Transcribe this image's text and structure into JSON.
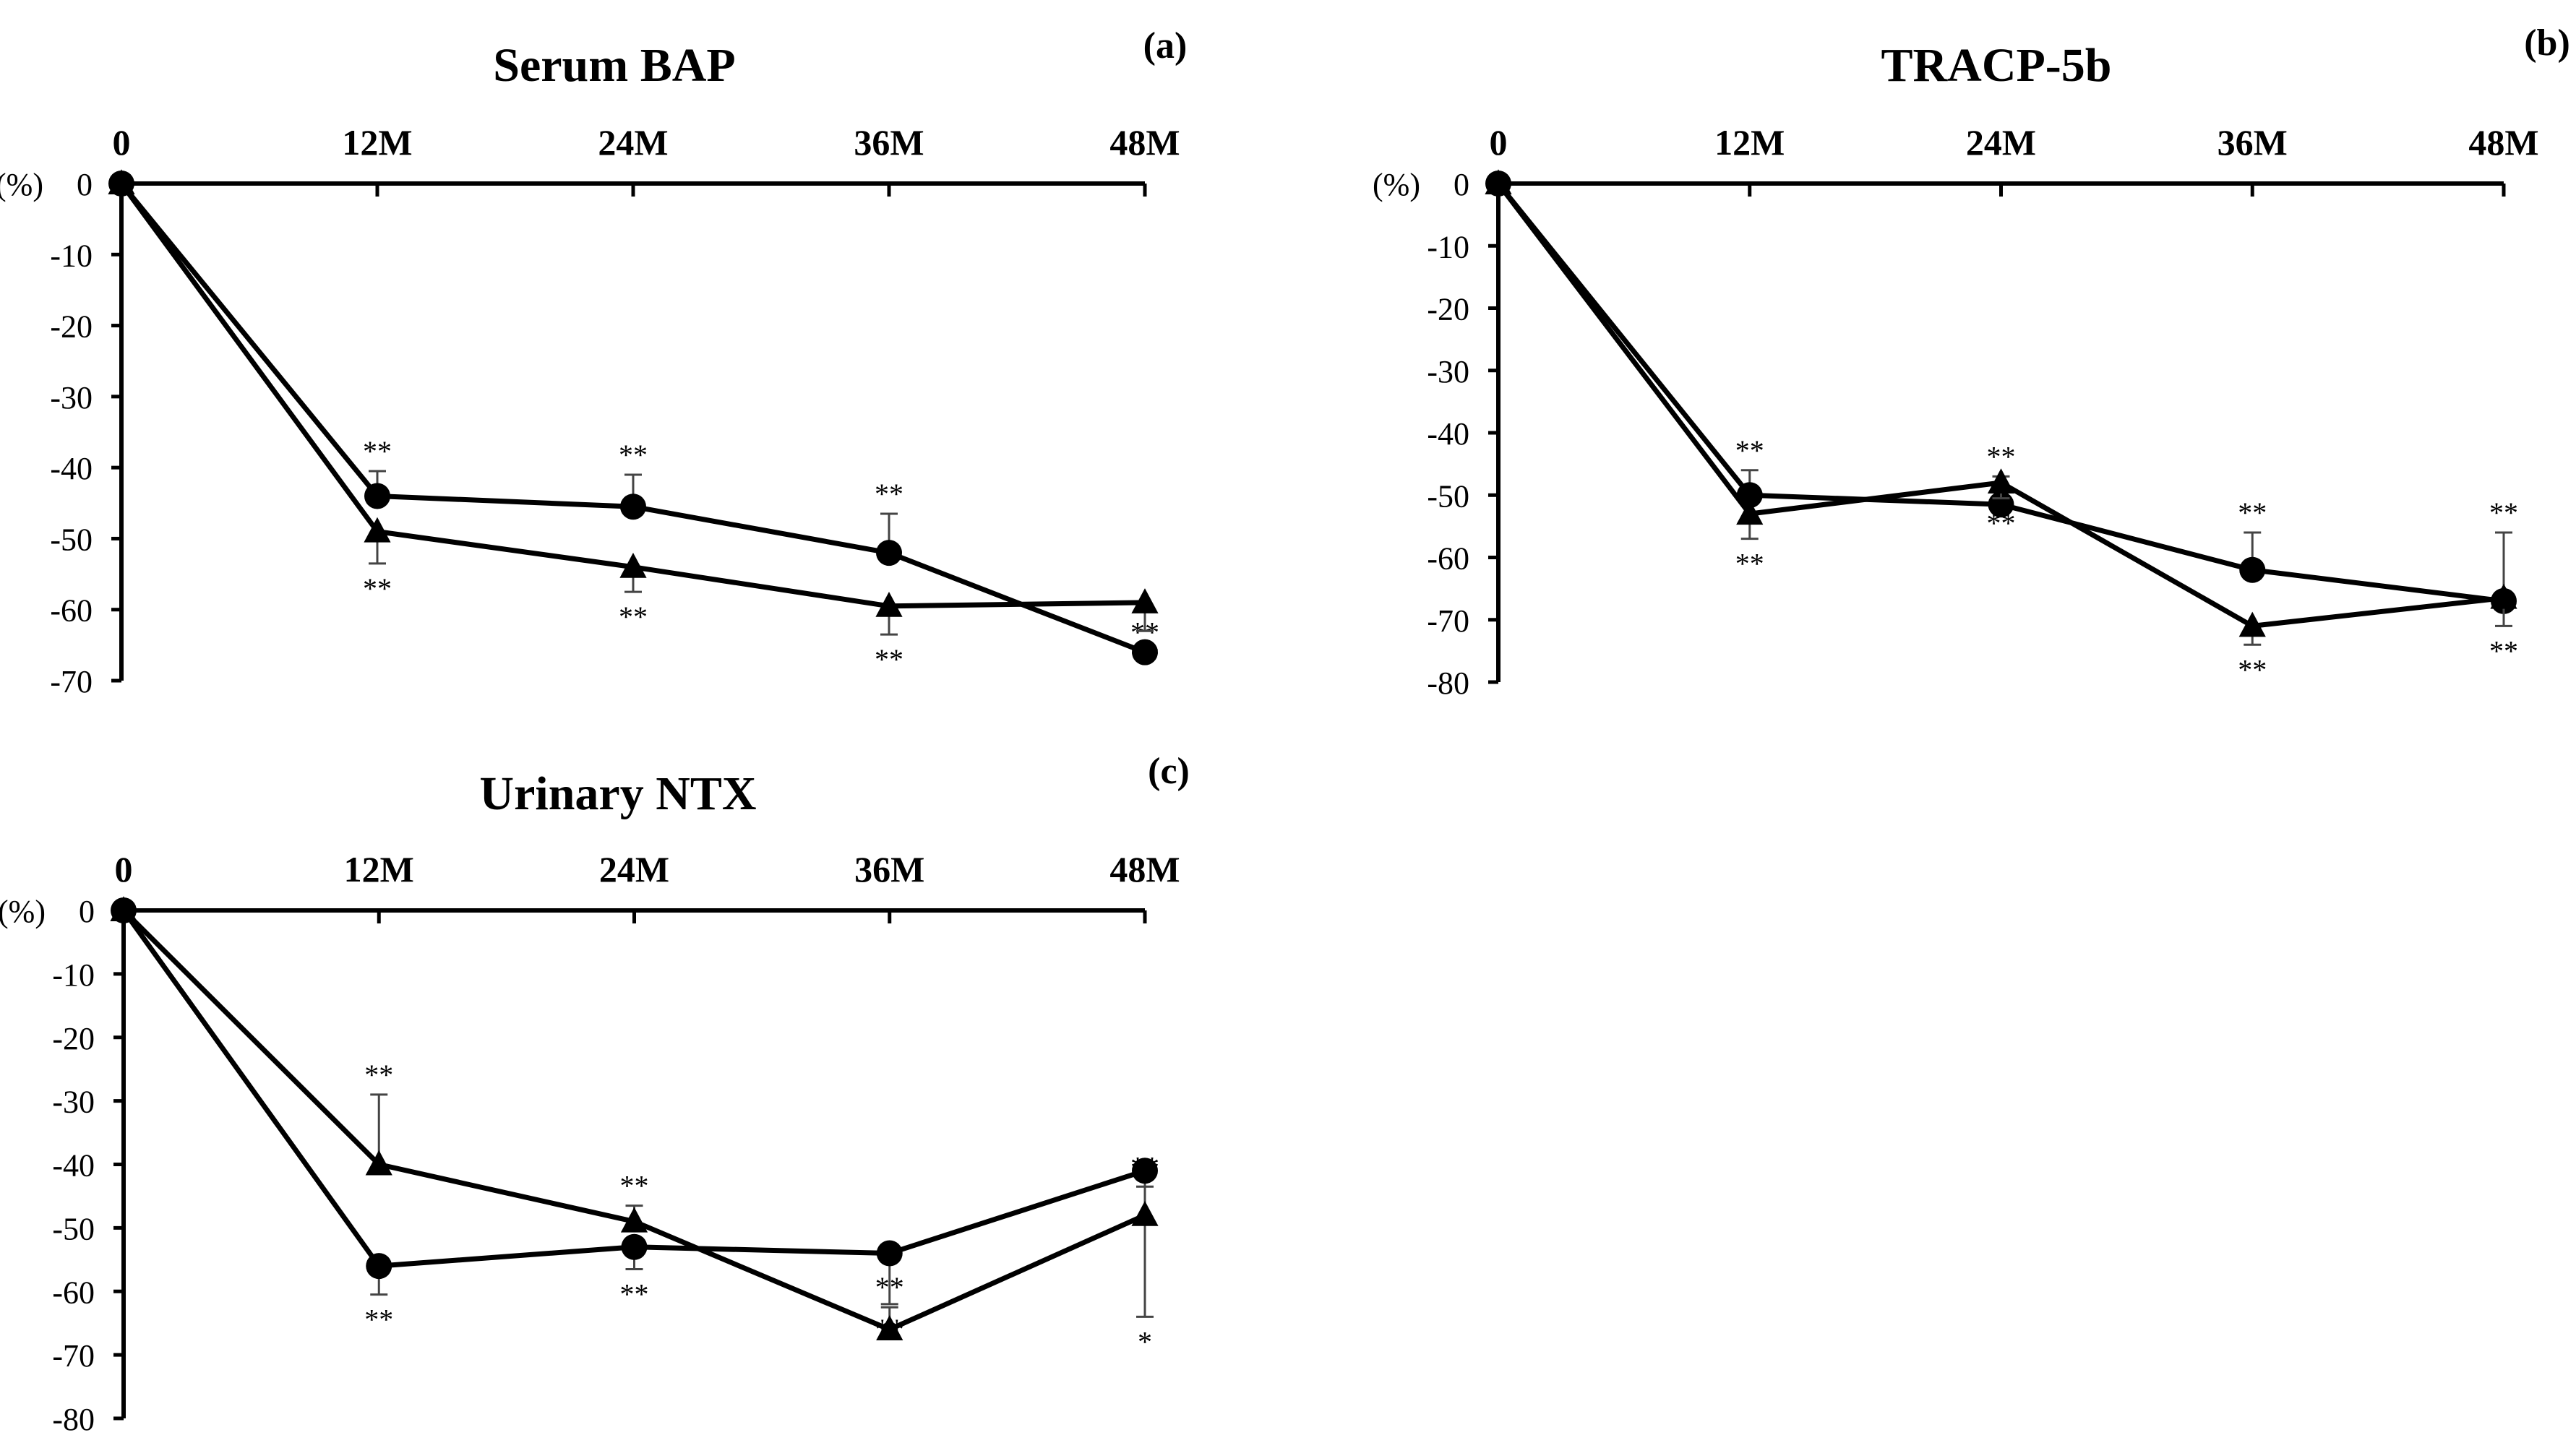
{
  "chart_data": [
    {
      "type": "line",
      "panel": "(a)",
      "title": "Serum BAP",
      "unit_label": "(%)",
      "categories": [
        "0",
        "12M",
        "24M",
        "36M",
        "48M"
      ],
      "ylim": [
        -70,
        0
      ],
      "yticks": [
        0,
        -10,
        -20,
        -30,
        -40,
        -50,
        -60,
        -70
      ],
      "series": [
        {
          "name": "circle",
          "marker": "circle",
          "values": [
            0,
            -44,
            -45.5,
            -52,
            -66
          ],
          "err": [
            0,
            3.5,
            4.5,
            5.5,
            0
          ],
          "stars": [
            "",
            "**",
            "**",
            "**",
            "**"
          ],
          "star_pos": "above"
        },
        {
          "name": "triangle",
          "marker": "triangle",
          "values": [
            0,
            -49,
            -54,
            -59.5,
            -59
          ],
          "err": [
            0,
            4.5,
            3.5,
            4,
            4
          ],
          "stars": [
            "",
            "**",
            "**",
            "**",
            "**"
          ],
          "star_pos": "below"
        }
      ]
    },
    {
      "type": "line",
      "panel": "(b)",
      "title": "TRACP-5b",
      "unit_label": "(%)",
      "categories": [
        "0",
        "12M",
        "24M",
        "36M",
        "48M"
      ],
      "ylim": [
        -80,
        0
      ],
      "yticks": [
        0,
        -10,
        -20,
        -30,
        -40,
        -50,
        -60,
        -70,
        -80
      ],
      "series": [
        {
          "name": "circle",
          "marker": "circle",
          "values": [
            0,
            -50,
            -51.5,
            -62,
            -67
          ],
          "err": [
            0,
            4,
            4.5,
            6,
            11
          ],
          "stars": [
            "",
            "**",
            "**",
            "**",
            "**"
          ],
          "star_pos": "above"
        },
        {
          "name": "triangle",
          "marker": "triangle",
          "values": [
            0,
            -53,
            -48,
            -71,
            -66.5
          ],
          "err": [
            0,
            4,
            2.5,
            3,
            4.5
          ],
          "stars": [
            "",
            "**",
            "**",
            "**",
            "**"
          ],
          "star_pos": "below"
        }
      ]
    },
    {
      "type": "line",
      "panel": "(c)",
      "title": "Urinary NTX",
      "unit_label": "(%)",
      "categories": [
        "0",
        "12M",
        "24M",
        "36M",
        "48M"
      ],
      "ylim": [
        -80,
        0
      ],
      "yticks": [
        0,
        -10,
        -20,
        -30,
        -40,
        -50,
        -60,
        -70,
        -80
      ],
      "series": [
        {
          "name": "circle",
          "marker": "circle",
          "values": [
            0,
            -56,
            -53,
            -54,
            -41
          ],
          "err": [
            0,
            4.5,
            3.5,
            8,
            23
          ],
          "stars": [
            "",
            "**",
            "**",
            "**",
            "*"
          ],
          "star_pos": "below"
        },
        {
          "name": "triangle",
          "marker": "triangle",
          "values": [
            0,
            -40,
            -49,
            -66,
            -48
          ],
          "err": [
            0,
            11,
            2.5,
            3.5,
            4.5
          ],
          "stars": [
            "",
            "**",
            "**",
            "**",
            "**"
          ],
          "star_pos": "above"
        }
      ]
    }
  ]
}
